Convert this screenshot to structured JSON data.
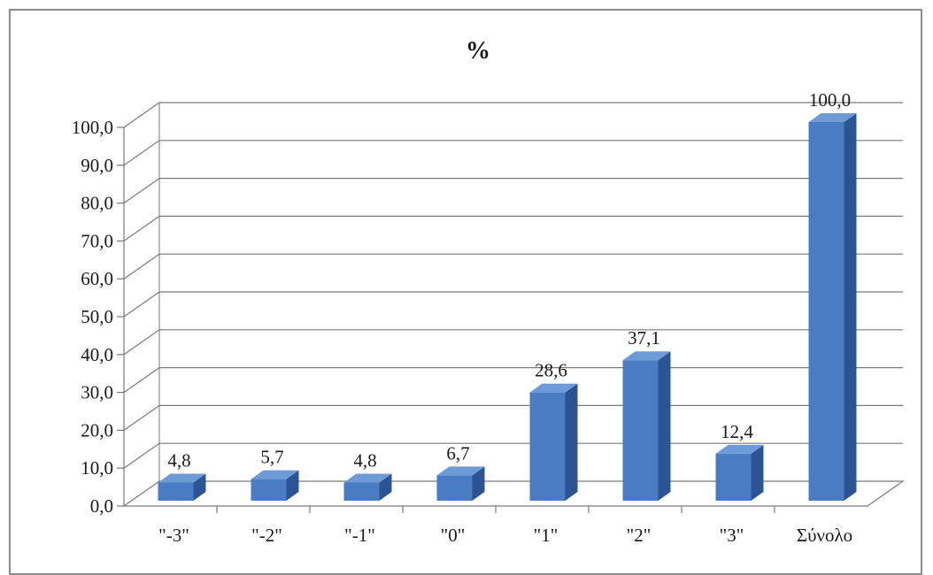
{
  "chart_data": {
    "type": "bar",
    "title": "%",
    "xlabel": "",
    "ylabel": "",
    "categories": [
      "\"-3\"",
      "\"-2\"",
      "\"-1\"",
      "\"0\"",
      "\"1\"",
      "\"2\"",
      "\"3\"",
      "Σύνολο"
    ],
    "values": [
      4.8,
      5.7,
      4.8,
      6.7,
      28.6,
      37.1,
      12.4,
      100.0
    ],
    "data_labels": [
      "4,8",
      "5,7",
      "4,8",
      "6,7",
      "28,6",
      "37,1",
      "12,4",
      "100,0"
    ],
    "ylim": [
      0,
      100
    ],
    "yticks": [
      "0,0",
      "10,0",
      "20,0",
      "30,0",
      "40,0",
      "50,0",
      "60,0",
      "70,0",
      "80,0",
      "90,0",
      "100,0"
    ],
    "grid": true,
    "legend": "none",
    "style": "3d-column",
    "bar_color": "#4a7cc4"
  }
}
